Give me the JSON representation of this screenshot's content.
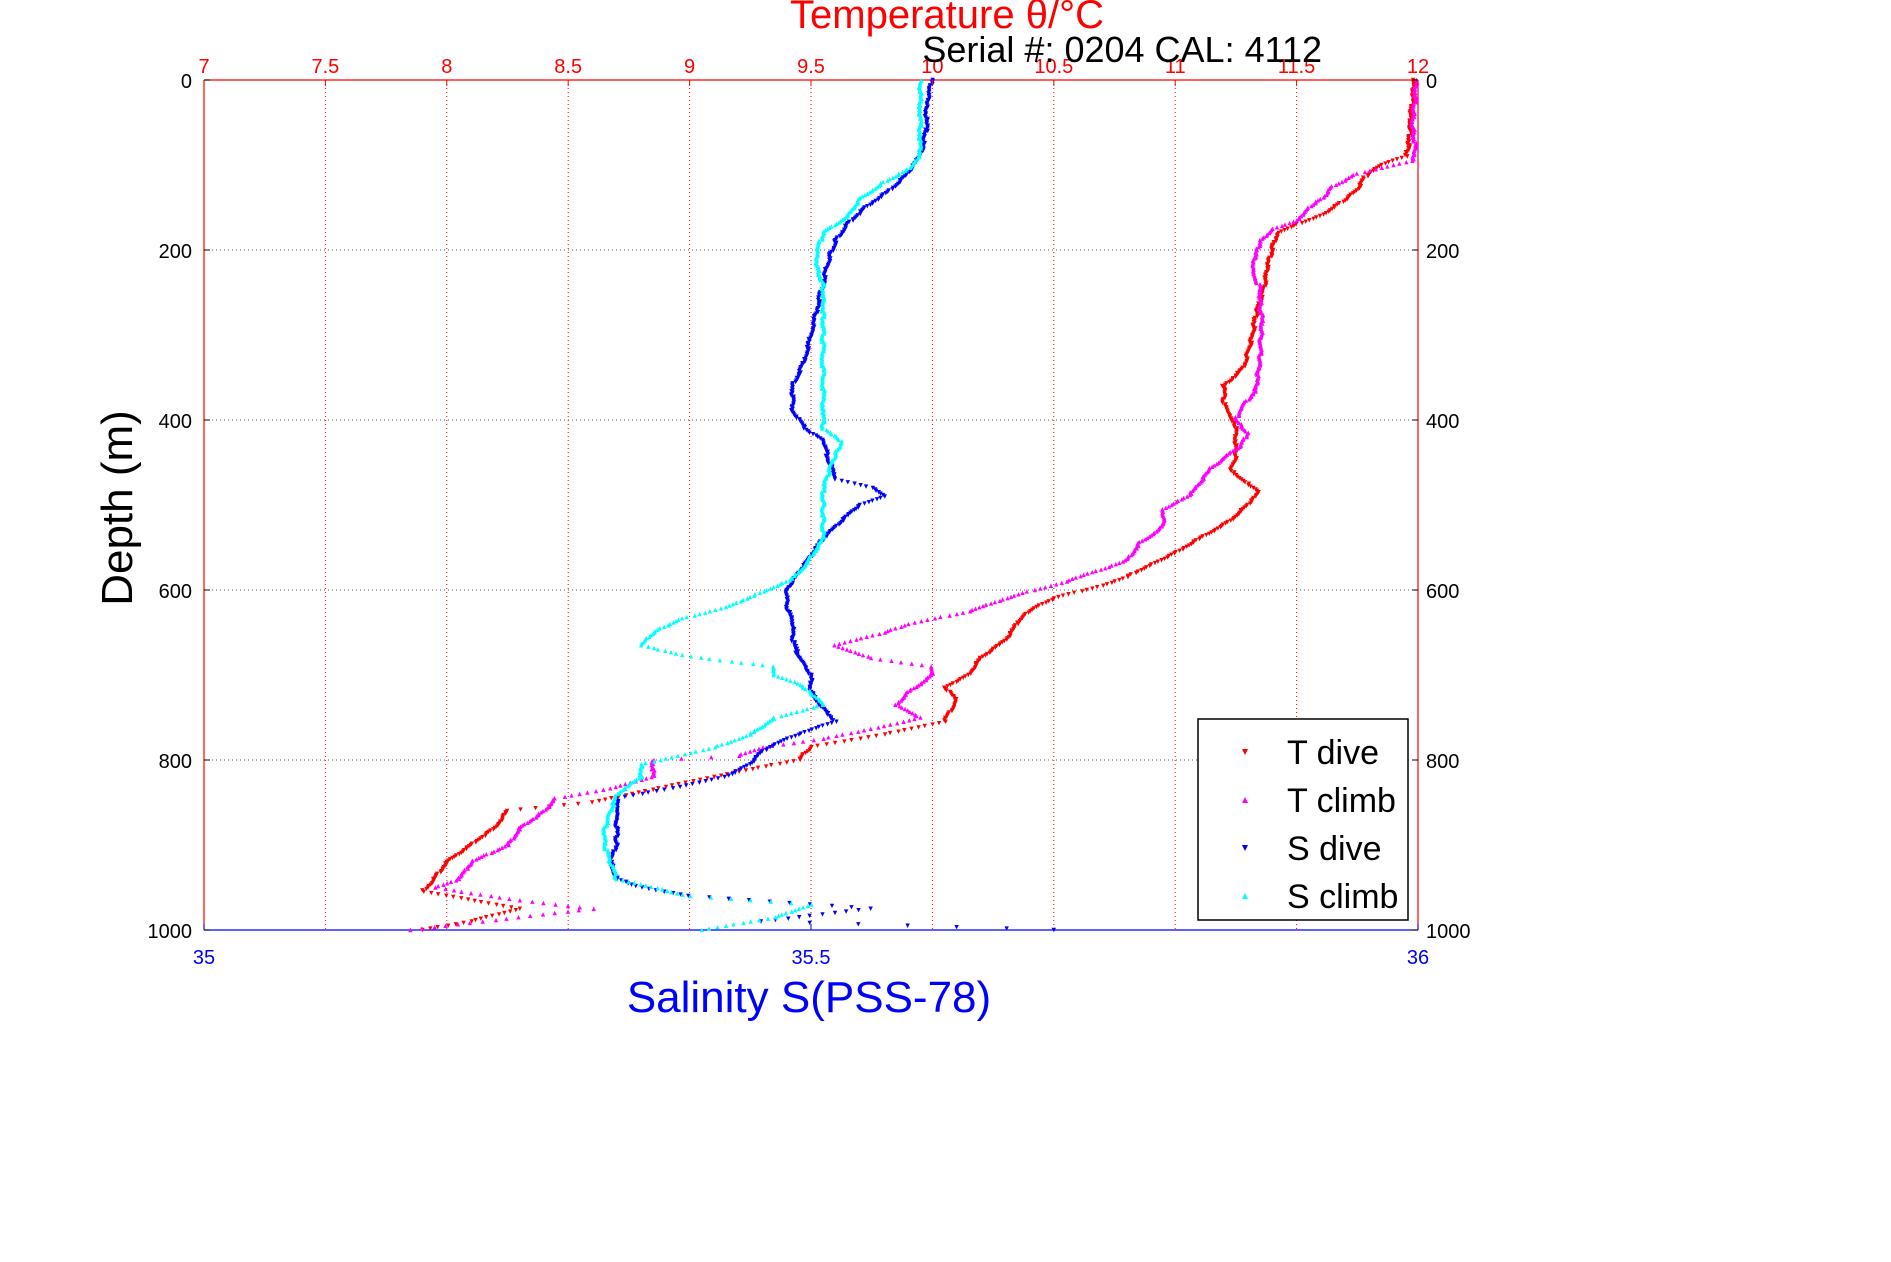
{
  "chart_data": {
    "type": "scatter",
    "title": "Temperature θ/°C",
    "subtitle": "Serial #: 0204  CAL: 4112",
    "ylabel": "Depth (m)",
    "xlabel_bottom": "Salinity S(PSS-78)",
    "ylim": [
      1000,
      0
    ],
    "y_reversed": true,
    "x_top": {
      "label": "Temperature θ/°C",
      "lim": [
        7,
        12
      ],
      "ticks": [
        "7",
        "7.5",
        "8",
        "8.5",
        "9",
        "9.5",
        "10",
        "10.5",
        "11",
        "11.5",
        "12"
      ],
      "color": "#ff0000"
    },
    "x_bottom": {
      "label": "Salinity S(PSS-78)",
      "lim": [
        35,
        36
      ],
      "ticks": [
        "35",
        "35.5",
        "36"
      ],
      "color": "#0000ff"
    },
    "y_ticks": [
      "0",
      "200",
      "400",
      "600",
      "800",
      "1000"
    ],
    "grid": true,
    "legend_position": "bottom-right",
    "colors": {
      "t_dive": "#ff0000",
      "t_climb": "#ff00ff",
      "s_dive": "#0000ff",
      "s_climb": "#00ffff"
    },
    "series": [
      {
        "name": "T dive",
        "axis": "temperature",
        "marker": "triangle-down",
        "color": "#ff0000",
        "points": [
          [
            11.98,
            0
          ],
          [
            11.98,
            20
          ],
          [
            11.97,
            40
          ],
          [
            11.97,
            60
          ],
          [
            11.96,
            80
          ],
          [
            11.95,
            90
          ],
          [
            11.85,
            100
          ],
          [
            11.78,
            115
          ],
          [
            11.75,
            130
          ],
          [
            11.68,
            145
          ],
          [
            11.6,
            160
          ],
          [
            11.5,
            170
          ],
          [
            11.42,
            180
          ],
          [
            11.4,
            200
          ],
          [
            11.38,
            220
          ],
          [
            11.37,
            240
          ],
          [
            11.35,
            260
          ],
          [
            11.33,
            280
          ],
          [
            11.32,
            300
          ],
          [
            11.3,
            320
          ],
          [
            11.28,
            340
          ],
          [
            11.2,
            360
          ],
          [
            11.2,
            380
          ],
          [
            11.22,
            395
          ],
          [
            11.25,
            410
          ],
          [
            11.25,
            430
          ],
          [
            11.25,
            445
          ],
          [
            11.23,
            460
          ],
          [
            11.3,
            475
          ],
          [
            11.35,
            485
          ],
          [
            11.3,
            500
          ],
          [
            11.22,
            520
          ],
          [
            11.1,
            540
          ],
          [
            10.98,
            560
          ],
          [
            10.9,
            570
          ],
          [
            10.8,
            585
          ],
          [
            10.7,
            595
          ],
          [
            10.5,
            610
          ],
          [
            10.4,
            625
          ],
          [
            10.35,
            640
          ],
          [
            10.3,
            660
          ],
          [
            10.2,
            680
          ],
          [
            10.15,
            700
          ],
          [
            10.05,
            715
          ],
          [
            10.1,
            730
          ],
          [
            10.05,
            755
          ],
          [
            9.8,
            770
          ],
          [
            9.5,
            785
          ],
          [
            9.45,
            800
          ],
          [
            9.1,
            820
          ],
          [
            8.85,
            835
          ],
          [
            8.6,
            850
          ],
          [
            8.25,
            860
          ],
          [
            8.2,
            880
          ],
          [
            8.1,
            900
          ],
          [
            8.0,
            920
          ],
          [
            7.95,
            940
          ],
          [
            7.9,
            955
          ],
          [
            8.3,
            975
          ],
          [
            8.1,
            990
          ],
          [
            7.9,
            1000
          ]
        ]
      },
      {
        "name": "T climb",
        "axis": "temperature",
        "marker": "triangle-up",
        "color": "#ff00ff",
        "points": [
          [
            11.99,
            0
          ],
          [
            11.99,
            20
          ],
          [
            11.98,
            40
          ],
          [
            11.98,
            60
          ],
          [
            11.99,
            80
          ],
          [
            11.98,
            95
          ],
          [
            11.75,
            110
          ],
          [
            11.65,
            125
          ],
          [
            11.6,
            140
          ],
          [
            11.55,
            150
          ],
          [
            11.5,
            165
          ],
          [
            11.4,
            175
          ],
          [
            11.35,
            190
          ],
          [
            11.33,
            205
          ],
          [
            11.32,
            225
          ],
          [
            11.35,
            245
          ],
          [
            11.35,
            265
          ],
          [
            11.36,
            285
          ],
          [
            11.35,
            305
          ],
          [
            11.35,
            325
          ],
          [
            11.34,
            345
          ],
          [
            11.33,
            365
          ],
          [
            11.27,
            385
          ],
          [
            11.25,
            400
          ],
          [
            11.3,
            415
          ],
          [
            11.27,
            430
          ],
          [
            11.15,
            455
          ],
          [
            11.1,
            475
          ],
          [
            11.05,
            490
          ],
          [
            10.95,
            505
          ],
          [
            10.95,
            525
          ],
          [
            10.85,
            545
          ],
          [
            10.8,
            565
          ],
          [
            10.55,
            590
          ],
          [
            10.35,
            605
          ],
          [
            10.15,
            625
          ],
          [
            9.9,
            640
          ],
          [
            9.8,
            650
          ],
          [
            9.6,
            665
          ],
          [
            9.75,
            680
          ],
          [
            10.0,
            690
          ],
          [
            10.0,
            700
          ],
          [
            9.9,
            720
          ],
          [
            9.85,
            735
          ],
          [
            9.95,
            750
          ],
          [
            9.8,
            760
          ],
          [
            9.55,
            775
          ],
          [
            9.3,
            785
          ],
          [
            9.2,
            795
          ],
          [
            8.85,
            800
          ],
          [
            8.85,
            820
          ],
          [
            8.65,
            835
          ],
          [
            8.45,
            845
          ],
          [
            8.4,
            860
          ],
          [
            8.3,
            880
          ],
          [
            8.25,
            900
          ],
          [
            8.1,
            920
          ],
          [
            8.05,
            940
          ],
          [
            7.95,
            950
          ],
          [
            8.3,
            965
          ],
          [
            8.6,
            975
          ],
          [
            8.15,
            990
          ],
          [
            7.85,
            1000
          ]
        ]
      },
      {
        "name": "S dive",
        "axis": "salinity",
        "marker": "triangle-down",
        "color": "#0000ff",
        "points": [
          [
            35.6,
            0
          ],
          [
            35.595,
            30
          ],
          [
            35.595,
            60
          ],
          [
            35.59,
            90
          ],
          [
            35.58,
            110
          ],
          [
            35.565,
            130
          ],
          [
            35.545,
            150
          ],
          [
            35.53,
            170
          ],
          [
            35.52,
            190
          ],
          [
            35.515,
            210
          ],
          [
            35.51,
            240
          ],
          [
            35.505,
            270
          ],
          [
            35.5,
            300
          ],
          [
            35.495,
            330
          ],
          [
            35.485,
            360
          ],
          [
            35.485,
            390
          ],
          [
            35.495,
            410
          ],
          [
            35.51,
            425
          ],
          [
            35.515,
            450
          ],
          [
            35.52,
            470
          ],
          [
            35.55,
            480
          ],
          [
            35.56,
            490
          ],
          [
            35.54,
            500
          ],
          [
            35.525,
            520
          ],
          [
            35.51,
            540
          ],
          [
            35.5,
            560
          ],
          [
            35.49,
            580
          ],
          [
            35.48,
            600
          ],
          [
            35.48,
            620
          ],
          [
            35.485,
            640
          ],
          [
            35.485,
            660
          ],
          [
            35.49,
            680
          ],
          [
            35.5,
            700
          ],
          [
            35.5,
            720
          ],
          [
            35.51,
            740
          ],
          [
            35.52,
            755
          ],
          [
            35.48,
            775
          ],
          [
            35.46,
            790
          ],
          [
            35.45,
            805
          ],
          [
            35.43,
            820
          ],
          [
            35.38,
            835
          ],
          [
            35.34,
            845
          ],
          [
            35.34,
            860
          ],
          [
            35.34,
            880
          ],
          [
            35.34,
            900
          ],
          [
            35.335,
            920
          ],
          [
            35.34,
            940
          ],
          [
            35.36,
            950
          ],
          [
            35.4,
            960
          ],
          [
            35.55,
            975
          ],
          [
            35.46,
            990
          ],
          [
            35.7,
            1000
          ]
        ]
      },
      {
        "name": "S climb",
        "axis": "salinity",
        "marker": "triangle-up",
        "color": "#00ffff",
        "points": [
          [
            35.59,
            0
          ],
          [
            35.59,
            30
          ],
          [
            35.59,
            60
          ],
          [
            35.59,
            90
          ],
          [
            35.58,
            105
          ],
          [
            35.56,
            120
          ],
          [
            35.54,
            140
          ],
          [
            35.53,
            160
          ],
          [
            35.51,
            180
          ],
          [
            35.505,
            200
          ],
          [
            35.505,
            220
          ],
          [
            35.51,
            240
          ],
          [
            35.51,
            260
          ],
          [
            35.51,
            280
          ],
          [
            35.51,
            300
          ],
          [
            35.51,
            330
          ],
          [
            35.51,
            360
          ],
          [
            35.51,
            390
          ],
          [
            35.51,
            410
          ],
          [
            35.525,
            425
          ],
          [
            35.52,
            440
          ],
          [
            35.515,
            460
          ],
          [
            35.51,
            480
          ],
          [
            35.51,
            500
          ],
          [
            35.51,
            520
          ],
          [
            35.51,
            540
          ],
          [
            35.5,
            560
          ],
          [
            35.49,
            580
          ],
          [
            35.48,
            590
          ],
          [
            35.455,
            605
          ],
          [
            35.43,
            620
          ],
          [
            35.39,
            635
          ],
          [
            35.37,
            650
          ],
          [
            35.36,
            665
          ],
          [
            35.4,
            678
          ],
          [
            35.47,
            690
          ],
          [
            35.47,
            700
          ],
          [
            35.49,
            710
          ],
          [
            35.5,
            720
          ],
          [
            35.51,
            735
          ],
          [
            35.47,
            750
          ],
          [
            35.45,
            770
          ],
          [
            35.42,
            785
          ],
          [
            35.39,
            795
          ],
          [
            35.36,
            805
          ],
          [
            35.36,
            820
          ],
          [
            35.34,
            840
          ],
          [
            35.335,
            860
          ],
          [
            35.33,
            880
          ],
          [
            35.33,
            900
          ],
          [
            35.335,
            920
          ],
          [
            35.34,
            940
          ],
          [
            35.4,
            960
          ],
          [
            35.5,
            970
          ],
          [
            35.47,
            985
          ],
          [
            35.41,
            1000
          ]
        ]
      }
    ]
  }
}
